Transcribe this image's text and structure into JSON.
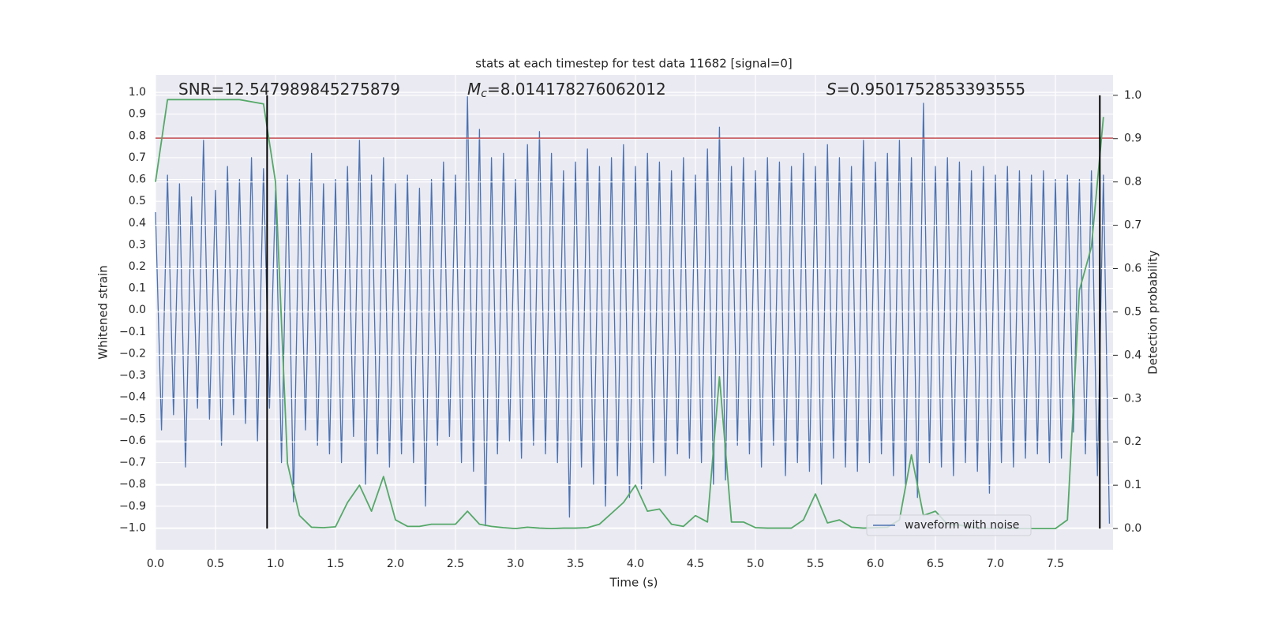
{
  "chart_data": {
    "type": "line",
    "title": "stats at each timestep for test data 11682 [signal=0]",
    "xlabel": "Time (s)",
    "ylabel": "Whitened strain",
    "y2label": "Detection probability",
    "x": [
      0.0,
      0.05,
      0.1,
      0.15,
      0.2,
      0.25,
      0.3,
      0.35,
      0.4,
      0.45,
      0.5,
      0.55,
      0.6,
      0.65,
      0.7,
      0.75,
      0.8,
      0.85,
      0.9,
      0.95,
      1.0,
      1.05,
      1.1,
      1.15,
      1.2,
      1.25,
      1.3,
      1.35,
      1.4,
      1.45,
      1.5,
      1.55,
      1.6,
      1.65,
      1.7,
      1.75,
      1.8,
      1.85,
      1.9,
      1.95,
      2.0,
      2.05,
      2.1,
      2.15,
      2.2,
      2.25,
      2.3,
      2.35,
      2.4,
      2.45,
      2.5,
      2.55,
      2.6,
      2.65,
      2.7,
      2.75,
      2.8,
      2.85,
      2.9,
      2.95,
      3.0,
      3.05,
      3.1,
      3.15,
      3.2,
      3.25,
      3.3,
      3.35,
      3.4,
      3.45,
      3.5,
      3.55,
      3.6,
      3.65,
      3.7,
      3.75,
      3.8,
      3.85,
      3.9,
      3.95,
      4.0,
      4.05,
      4.1,
      4.15,
      4.2,
      4.25,
      4.3,
      4.35,
      4.4,
      4.45,
      4.5,
      4.55,
      4.6,
      4.65,
      4.7,
      4.75,
      4.8,
      4.85,
      4.9,
      4.95,
      5.0,
      5.05,
      5.1,
      5.15,
      5.2,
      5.25,
      5.3,
      5.35,
      5.4,
      5.45,
      5.5,
      5.55,
      5.6,
      5.65,
      5.7,
      5.75,
      5.8,
      5.85,
      5.9,
      5.95,
      6.0,
      6.05,
      6.1,
      6.15,
      6.2,
      6.25,
      6.3,
      6.35,
      6.4,
      6.45,
      6.5,
      6.55,
      6.6,
      6.65,
      6.7,
      6.75,
      6.8,
      6.85,
      6.9,
      6.95,
      7.0,
      7.05,
      7.1,
      7.15,
      7.2,
      7.25,
      7.3,
      7.35,
      7.4,
      7.45,
      7.5,
      7.55,
      7.6,
      7.65,
      7.7,
      7.75,
      7.8,
      7.85,
      7.9,
      7.95
    ],
    "xlim": [
      0,
      7.98
    ],
    "ylim": [
      -1.1,
      1.08
    ],
    "y2lim": [
      -0.049,
      1.047
    ],
    "xticks": [
      {
        "value": 0,
        "label": "0.0"
      },
      0.5,
      {
        "value": 1,
        "label": "1.0"
      },
      1.5,
      {
        "value": 2,
        "label": "2.0"
      },
      2.5,
      {
        "value": 3,
        "label": "3.0"
      },
      3.5,
      {
        "value": 4,
        "label": "4.0"
      },
      4.5,
      {
        "value": 5,
        "label": "5.0"
      },
      5.5,
      {
        "value": 6,
        "label": "6.0"
      },
      6.5,
      {
        "value": 7,
        "label": "7.0"
      },
      7.5
    ],
    "yticks": [
      {
        "value": -1,
        "label": "−1.0"
      },
      {
        "value": -0.9,
        "label": "−0.9"
      },
      {
        "value": -0.8,
        "label": "−0.8"
      },
      {
        "value": -0.7,
        "label": "−0.7"
      },
      {
        "value": -0.6,
        "label": "−0.6"
      },
      {
        "value": -0.5,
        "label": "−0.5"
      },
      {
        "value": -0.4,
        "label": "−0.4"
      },
      {
        "value": -0.3,
        "label": "−0.3"
      },
      {
        "value": -0.2,
        "label": "−0.2"
      },
      {
        "value": -0.1,
        "label": "−0.1"
      },
      {
        "value": 0,
        "label": "0.0"
      },
      0.1,
      0.2,
      0.3,
      0.4,
      0.5,
      0.6,
      0.7,
      0.8,
      0.9,
      {
        "value": 1,
        "label": "1.0"
      }
    ],
    "y2ticks": [
      {
        "value": 0,
        "label": "0.0"
      },
      0.1,
      0.2,
      0.3,
      0.4,
      0.5,
      0.6,
      0.7,
      0.8,
      0.9,
      {
        "value": 1,
        "label": "1.0"
      }
    ],
    "grid": true,
    "legend": "lower right",
    "series": [
      {
        "name": "waveform with noise",
        "color": "#4c72b0",
        "values": [
          0.45,
          -0.55,
          0.62,
          -0.48,
          0.58,
          -0.72,
          0.52,
          -0.45,
          0.78,
          -0.5,
          0.55,
          -0.62,
          0.66,
          -0.48,
          0.6,
          -0.52,
          0.7,
          -0.6,
          0.65,
          -0.45,
          0.55,
          -0.7,
          0.62,
          -0.88,
          0.6,
          -0.55,
          0.72,
          -0.62,
          0.58,
          -0.66,
          0.6,
          -0.7,
          0.66,
          -0.58,
          0.78,
          -0.8,
          0.62,
          -0.66,
          0.7,
          -0.72,
          0.58,
          -0.66,
          0.62,
          -0.7,
          0.56,
          -0.9,
          0.6,
          -0.62,
          0.68,
          -0.58,
          0.62,
          -0.7,
          0.98,
          -0.74,
          0.83,
          -0.99,
          0.7,
          -0.66,
          0.72,
          -0.6,
          0.6,
          -0.68,
          0.76,
          -0.62,
          0.82,
          -0.66,
          0.72,
          -0.7,
          0.64,
          -0.95,
          0.68,
          -0.72,
          0.74,
          -0.8,
          0.66,
          -0.9,
          0.7,
          -0.76,
          0.76,
          -0.86,
          0.66,
          -0.82,
          0.72,
          -0.7,
          0.68,
          -0.76,
          0.64,
          -0.66,
          0.7,
          -0.68,
          0.62,
          -0.7,
          0.74,
          -0.8,
          0.84,
          -0.78,
          0.66,
          -0.62,
          0.7,
          -0.66,
          0.64,
          -0.72,
          0.7,
          -0.62,
          0.68,
          -0.76,
          0.66,
          -0.7,
          0.72,
          -0.74,
          0.66,
          -0.8,
          0.76,
          -0.68,
          0.7,
          -0.72,
          0.66,
          -0.74,
          0.78,
          -0.7,
          0.68,
          -0.66,
          0.72,
          -0.76,
          0.78,
          -0.8,
          0.7,
          -0.86,
          0.95,
          -0.7,
          0.66,
          -0.72,
          0.7,
          -0.76,
          0.68,
          -0.7,
          0.64,
          -0.74,
          0.66,
          -0.84,
          0.62,
          -0.7,
          0.66,
          -0.72,
          0.64,
          -0.68,
          0.62,
          -0.66,
          0.64,
          -0.7,
          0.6,
          -0.68,
          0.62,
          -0.56,
          0.6,
          -0.66,
          0.64,
          -0.76,
          0.62,
          -0.98
        ]
      },
      {
        "color": "#55a868",
        "axis": "y2",
        "x": [
          0.0,
          0.1,
          0.2,
          0.3,
          0.4,
          0.5,
          0.6,
          0.7,
          0.8,
          0.9,
          1.0,
          1.1,
          1.2,
          1.3,
          1.4,
          1.5,
          1.6,
          1.7,
          1.8,
          1.9,
          2.0,
          2.1,
          2.2,
          2.3,
          2.4,
          2.5,
          2.6,
          2.7,
          2.8,
          2.9,
          3.0,
          3.1,
          3.2,
          3.3,
          3.4,
          3.5,
          3.6,
          3.7,
          3.8,
          3.9,
          4.0,
          4.1,
          4.2,
          4.3,
          4.4,
          4.5,
          4.6,
          4.7,
          4.8,
          4.9,
          5.0,
          5.1,
          5.2,
          5.3,
          5.4,
          5.5,
          5.6,
          5.7,
          5.8,
          5.9,
          6.0,
          6.1,
          6.2,
          6.3,
          6.4,
          6.5,
          6.6,
          6.7,
          6.8,
          6.9,
          7.0,
          7.1,
          7.2,
          7.3,
          7.4,
          7.5,
          7.6,
          7.7,
          7.8,
          7.9
        ],
        "values": [
          0.8,
          0.99,
          0.99,
          0.99,
          0.99,
          0.99,
          0.99,
          0.99,
          0.985,
          0.98,
          0.8,
          0.15,
          0.03,
          0.003,
          0.002,
          0.004,
          0.06,
          0.1,
          0.04,
          0.12,
          0.02,
          0.005,
          0.005,
          0.01,
          0.01,
          0.01,
          0.04,
          0.01,
          0.005,
          0.002,
          0,
          0.003,
          0.001,
          0,
          0.001,
          0.001,
          0.002,
          0.01,
          0.035,
          0.06,
          0.1,
          0.04,
          0.045,
          0.01,
          0.005,
          0.03,
          0.015,
          0.35,
          0.015,
          0.015,
          0.002,
          0.001,
          0.001,
          0.001,
          0.02,
          0.08,
          0.013,
          0.02,
          0.003,
          0.001,
          0.002,
          0.003,
          0.02,
          0.17,
          0.03,
          0.04,
          0.01,
          0.008,
          0.003,
          0.001,
          0,
          0,
          0,
          0,
          0,
          0,
          0.02,
          0.55,
          0.65,
          0.95
        ]
      }
    ],
    "hlines": [
      {
        "value": 0.79,
        "color": "#c44e52"
      }
    ],
    "vlines": [
      {
        "value": 0.93,
        "ymin": 0,
        "ymax": 1,
        "axis": "y2",
        "color": "#000000"
      },
      {
        "value": 7.87,
        "ymin": 0,
        "ymax": 1,
        "axis": "y2",
        "color": "#000000"
      }
    ],
    "annotations": [
      {
        "text": "SNR=12.547989845275879"
      },
      {
        "symbol": "M",
        "subscript": "c",
        "text": "=8.014178276062012"
      },
      {
        "symbol": "S",
        "text": "=0.9501752853393555"
      }
    ]
  }
}
